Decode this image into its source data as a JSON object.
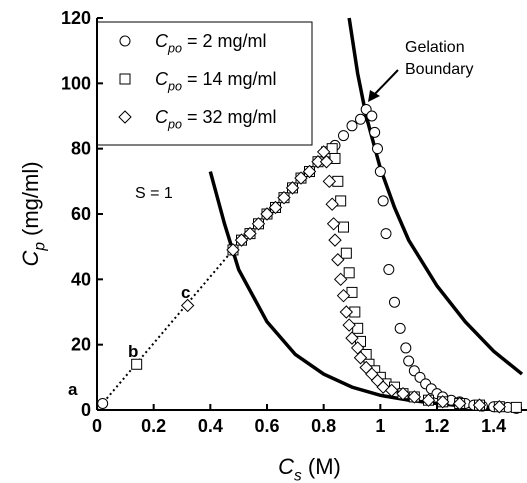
{
  "chart_data": {
    "type": "scatter",
    "x_label": "Cs (M)",
    "y_label": "Cp (mg/ml)",
    "xlim": [
      0,
      1.5
    ],
    "ylim": [
      0,
      120
    ],
    "xticks": [
      0,
      0.2,
      0.4,
      0.6,
      0.8,
      1,
      1.2,
      1.4
    ],
    "yticks": [
      0,
      20,
      40,
      60,
      80,
      100,
      120
    ],
    "gelation_label": [
      "Gelation",
      "Boundary"
    ],
    "s1_label": "S = 1",
    "point_labels": [
      "a",
      "b",
      "c"
    ],
    "series": [
      {
        "name": "Cpo = 2 mg/ml",
        "marker": "circle",
        "color": "#000",
        "x": [
          0.02,
          0.48,
          0.51,
          0.54,
          0.57,
          0.6,
          0.63,
          0.66,
          0.69,
          0.72,
          0.75,
          0.78,
          0.81,
          0.84,
          0.87,
          0.9,
          0.93,
          0.95,
          0.97,
          0.98,
          0.99,
          1.0,
          1.01,
          1.02,
          1.03,
          1.05,
          1.07,
          1.09,
          1.1,
          1.12,
          1.14,
          1.16,
          1.18,
          1.2,
          1.22,
          1.25,
          1.28,
          1.3,
          1.33,
          1.36,
          1.4,
          1.45,
          1.48
        ],
        "values": [
          2,
          49,
          52,
          54,
          57,
          60,
          62,
          65,
          68,
          71,
          73,
          76,
          79,
          81,
          84,
          87,
          89,
          92,
          90,
          85,
          80,
          73,
          64,
          54,
          43,
          33,
          25,
          19,
          15,
          12,
          10,
          8,
          6.5,
          5,
          4,
          3,
          2.5,
          2,
          1.5,
          1.2,
          1,
          0.8,
          0.5
        ]
      },
      {
        "name": "Cpo = 14 mg/ml",
        "marker": "square",
        "color": "#000",
        "x": [
          0.14,
          0.48,
          0.51,
          0.54,
          0.57,
          0.6,
          0.63,
          0.66,
          0.69,
          0.72,
          0.75,
          0.78,
          0.81,
          0.83,
          0.84,
          0.85,
          0.86,
          0.87,
          0.88,
          0.89,
          0.9,
          0.91,
          0.92,
          0.93,
          0.95,
          0.96,
          0.98,
          1.0,
          1.02,
          1.05,
          1.08,
          1.12,
          1.17,
          1.22,
          1.28,
          1.35,
          1.42,
          1.48
        ],
        "values": [
          14,
          49,
          52,
          54,
          57,
          60,
          62,
          65,
          68,
          71,
          73,
          76,
          79,
          80,
          77,
          70,
          64,
          56,
          48,
          42,
          36,
          30,
          25,
          21,
          17,
          14,
          12,
          10,
          8,
          7,
          5,
          4,
          3,
          2.5,
          2,
          1.5,
          1,
          0.8
        ]
      },
      {
        "name": "Cpo = 32 mg/ml",
        "marker": "diamond",
        "color": "#000",
        "x": [
          0.32,
          0.48,
          0.51,
          0.54,
          0.57,
          0.6,
          0.63,
          0.66,
          0.69,
          0.72,
          0.75,
          0.78,
          0.8,
          0.81,
          0.82,
          0.83,
          0.835,
          0.84,
          0.85,
          0.86,
          0.87,
          0.88,
          0.89,
          0.9,
          0.92,
          0.93,
          0.95,
          0.97,
          0.99,
          1.01,
          1.04,
          1.08,
          1.12,
          1.17,
          1.22,
          1.28,
          1.35,
          1.42
        ],
        "values": [
          32,
          49,
          52,
          54,
          57,
          60,
          62,
          65,
          68,
          71,
          73,
          76,
          79,
          76,
          70,
          63,
          57,
          52,
          46,
          40,
          35,
          30,
          26,
          22,
          19,
          16,
          13,
          11,
          9,
          7,
          6,
          5,
          4,
          3,
          2.5,
          2,
          1.5,
          1
        ]
      }
    ],
    "curves": [
      {
        "style": "solid",
        "color": "#000",
        "x": [
          0.89,
          0.92,
          0.95,
          1.0,
          1.05,
          1.1,
          1.2,
          1.3,
          1.4,
          1.5
        ],
        "values": [
          120,
          103,
          90,
          74,
          62,
          52,
          38,
          27,
          18,
          11
        ]
      },
      {
        "style": "solid",
        "color": "#000",
        "x": [
          0.4,
          0.45,
          0.5,
          0.6,
          0.7,
          0.8,
          0.9,
          1.0,
          1.1,
          1.2,
          1.3,
          1.4,
          1.5
        ],
        "values": [
          73,
          57,
          43,
          27,
          17,
          11,
          7,
          4.5,
          3,
          2,
          1.2,
          0.7,
          0.4
        ]
      },
      {
        "style": "dotted",
        "color": "#000",
        "x": [
          0,
          0.47
        ],
        "values": [
          0,
          48
        ]
      }
    ]
  }
}
